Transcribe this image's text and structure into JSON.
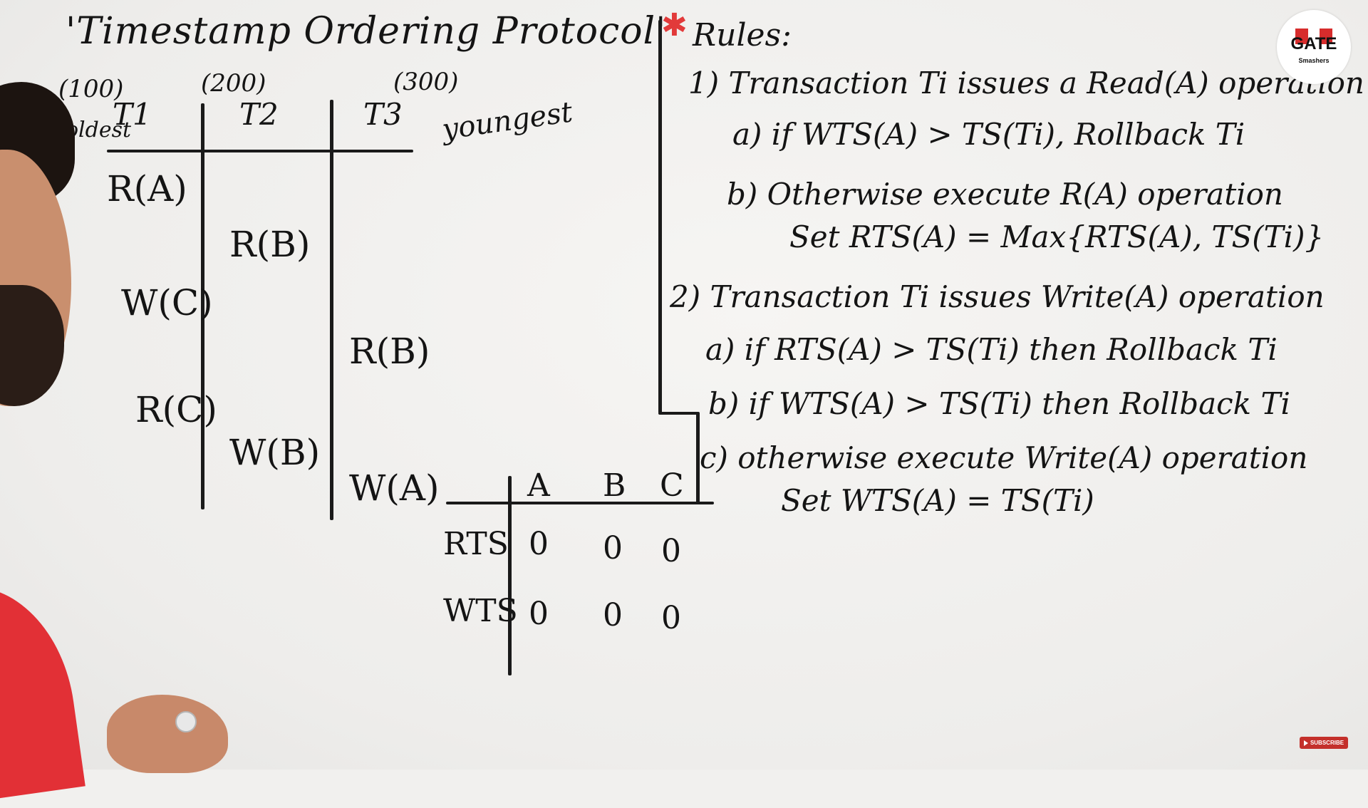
{
  "title": "'Timestamp Ordering Protocol'",
  "transactions": [
    {
      "ts": "(100)",
      "name": "T1",
      "note": "oldest"
    },
    {
      "ts": "(200)",
      "name": "T2",
      "note": ""
    },
    {
      "ts": "(300)",
      "name": "T3",
      "note": "youngest"
    }
  ],
  "schedule": {
    "t1": [
      "R(A)",
      "W(C)",
      "R(C)"
    ],
    "t2": [
      "R(B)",
      "W(B)"
    ],
    "t3": [
      "R(B)",
      "W(A)"
    ]
  },
  "rules": {
    "heading": "Rules:",
    "r1": "1) Transaction Ti issues a Read(A) operation",
    "r1a": "a)  if WTS(A) > TS(Ti), Rollback Ti",
    "r1b": "b) Otherwise execute R(A) operation",
    "r1b_set": "Set RTS(A) = Max{RTS(A), TS(Ti)}",
    "r2": "2) Transaction Ti issues Write(A) operation",
    "r2a": "a) if RTS(A) > TS(Ti) then Rollback Ti",
    "r2b": "b) if WTS(A) > TS(Ti) then Rollback Ti",
    "r2c": "c) otherwise execute Write(A) operation",
    "r2c_set": "Set WTS(A) = TS(Ti)"
  },
  "ts_table": {
    "columns": [
      "A",
      "B",
      "C"
    ],
    "rows": [
      {
        "label": "RTS",
        "values": [
          "0",
          "0",
          "0"
        ]
      },
      {
        "label": "WTS",
        "values": [
          "0",
          "0",
          "0"
        ]
      }
    ]
  },
  "logo": {
    "text": "GATE",
    "sub": "Smashers",
    "brand_red": "#d72c2c"
  },
  "subscribe_label": "SUBSCRIBE"
}
